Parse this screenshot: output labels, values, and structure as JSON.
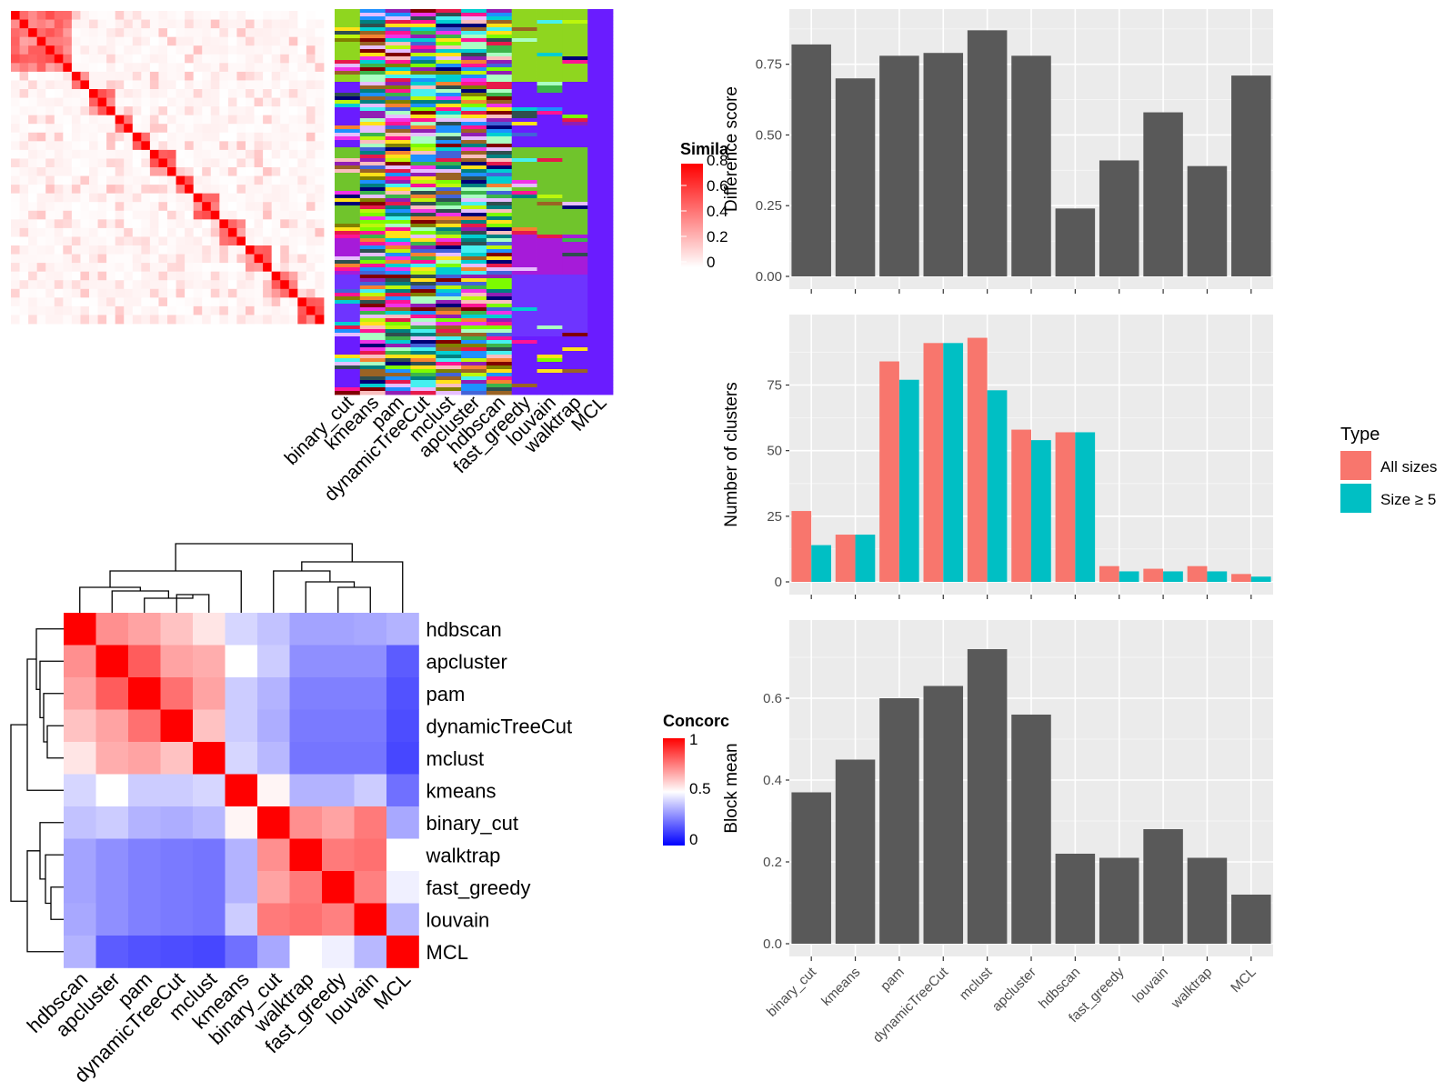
{
  "methods": [
    "binary_cut",
    "kmeans",
    "pam",
    "dynamicTreeCut",
    "mclust",
    "apcluster",
    "hdbscan",
    "fast_greedy",
    "louvain",
    "walktrap",
    "MCL"
  ],
  "colors": {
    "bar_gray": "#595959",
    "panel_bg": "#ebebeb",
    "grid": "#ffffff",
    "all_sizes": "#f8766d",
    "size_ge5": "#00bfc4",
    "heat_high": "#ff0000",
    "heat_low": "#ffffff",
    "conc_low": "#0000ff"
  },
  "similarity_legend": {
    "title": "Simila",
    "ticks": [
      "0.8",
      "0.6",
      "0.4",
      "0.2",
      "0"
    ]
  },
  "concordance_legend": {
    "title": "Concorc",
    "ticks": [
      "1",
      "0.5",
      "0"
    ]
  },
  "chart_data": [
    {
      "id": "similarity_heatmap",
      "type": "heatmap",
      "description_label_columns": [
        "binary_cut",
        "kmeans",
        "pam",
        "dynamicTreeCut",
        "mclust",
        "apcluster",
        "hdbscan",
        "fast_greedy",
        "louvain",
        "walktrap",
        "MCL"
      ],
      "scale": [
        0,
        0.8
      ]
    },
    {
      "id": "concordance_heatmap",
      "type": "heatmap",
      "row_labels": [
        "hdbscan",
        "apcluster",
        "pam",
        "dynamicTreeCut",
        "mclust",
        "kmeans",
        "binary_cut",
        "walktrap",
        "fast_greedy",
        "louvain",
        "MCL"
      ],
      "col_labels": [
        "hdbscan",
        "apcluster",
        "pam",
        "dynamicTreeCut",
        "mclust",
        "kmeans",
        "binary_cut",
        "walktrap",
        "fast_greedy",
        "louvain",
        "MCL"
      ],
      "values": [
        [
          1.0,
          0.72,
          0.68,
          0.62,
          0.55,
          0.42,
          0.38,
          0.32,
          0.32,
          0.33,
          0.35
        ],
        [
          0.72,
          1.0,
          0.82,
          0.68,
          0.66,
          0.5,
          0.4,
          0.28,
          0.28,
          0.28,
          0.18
        ],
        [
          0.68,
          0.82,
          1.0,
          0.78,
          0.68,
          0.4,
          0.35,
          0.25,
          0.25,
          0.25,
          0.16
        ],
        [
          0.62,
          0.68,
          0.78,
          1.0,
          0.62,
          0.4,
          0.34,
          0.24,
          0.24,
          0.24,
          0.15
        ],
        [
          0.55,
          0.66,
          0.68,
          0.62,
          1.0,
          0.42,
          0.36,
          0.23,
          0.23,
          0.23,
          0.14
        ],
        [
          0.42,
          0.5,
          0.4,
          0.4,
          0.42,
          1.0,
          0.52,
          0.35,
          0.35,
          0.4,
          0.22
        ],
        [
          0.38,
          0.4,
          0.35,
          0.34,
          0.36,
          0.52,
          1.0,
          0.72,
          0.68,
          0.76,
          0.33
        ],
        [
          0.32,
          0.28,
          0.25,
          0.24,
          0.23,
          0.35,
          0.72,
          1.0,
          0.76,
          0.78,
          0.5
        ],
        [
          0.32,
          0.28,
          0.25,
          0.24,
          0.23,
          0.35,
          0.68,
          0.76,
          1.0,
          0.75,
          0.47
        ],
        [
          0.33,
          0.28,
          0.25,
          0.24,
          0.23,
          0.4,
          0.76,
          0.78,
          0.75,
          1.0,
          0.36
        ],
        [
          0.35,
          0.18,
          0.16,
          0.15,
          0.14,
          0.22,
          0.33,
          0.5,
          0.47,
          0.36,
          1.0
        ]
      ]
    },
    {
      "id": "difference_score",
      "type": "bar",
      "categories": [
        "binary_cut",
        "kmeans",
        "pam",
        "dynamicTreeCut",
        "mclust",
        "apcluster",
        "hdbscan",
        "fast_greedy",
        "louvain",
        "walktrap",
        "MCL"
      ],
      "values": [
        0.82,
        0.7,
        0.78,
        0.79,
        0.87,
        0.78,
        0.24,
        0.41,
        0.58,
        0.39,
        0.71
      ],
      "ylabel": "Difference score",
      "ylim": [
        0,
        0.9
      ],
      "yticks": [
        "0.00",
        "0.25",
        "0.50",
        "0.75"
      ],
      "grid": true
    },
    {
      "id": "number_of_clusters",
      "type": "bar",
      "categories": [
        "binary_cut",
        "kmeans",
        "pam",
        "dynamicTreeCut",
        "mclust",
        "apcluster",
        "hdbscan",
        "fast_greedy",
        "louvain",
        "walktrap",
        "MCL"
      ],
      "series": [
        {
          "name": "All sizes",
          "values": [
            27,
            18,
            84,
            91,
            93,
            58,
            57,
            6,
            5,
            6,
            3
          ]
        },
        {
          "name": "Size ≥ 5",
          "values": [
            14,
            18,
            77,
            91,
            73,
            54,
            57,
            4,
            4,
            4,
            2
          ]
        }
      ],
      "ylabel": "Number of clusters",
      "ylim": [
        0,
        97
      ],
      "yticks": [
        "0",
        "25",
        "50",
        "75"
      ],
      "legend_title": "Type",
      "legend_position": "right",
      "grid": true
    },
    {
      "id": "block_mean",
      "type": "bar",
      "categories": [
        "binary_cut",
        "kmeans",
        "pam",
        "dynamicTreeCut",
        "mclust",
        "apcluster",
        "hdbscan",
        "fast_greedy",
        "louvain",
        "walktrap",
        "MCL"
      ],
      "values": [
        0.37,
        0.45,
        0.6,
        0.63,
        0.72,
        0.56,
        0.22,
        0.21,
        0.28,
        0.21,
        0.12
      ],
      "ylabel": "Block mean",
      "ylim": [
        0,
        0.76
      ],
      "yticks": [
        "0.0",
        "0.2",
        "0.4",
        "0.6"
      ],
      "grid": true
    }
  ]
}
